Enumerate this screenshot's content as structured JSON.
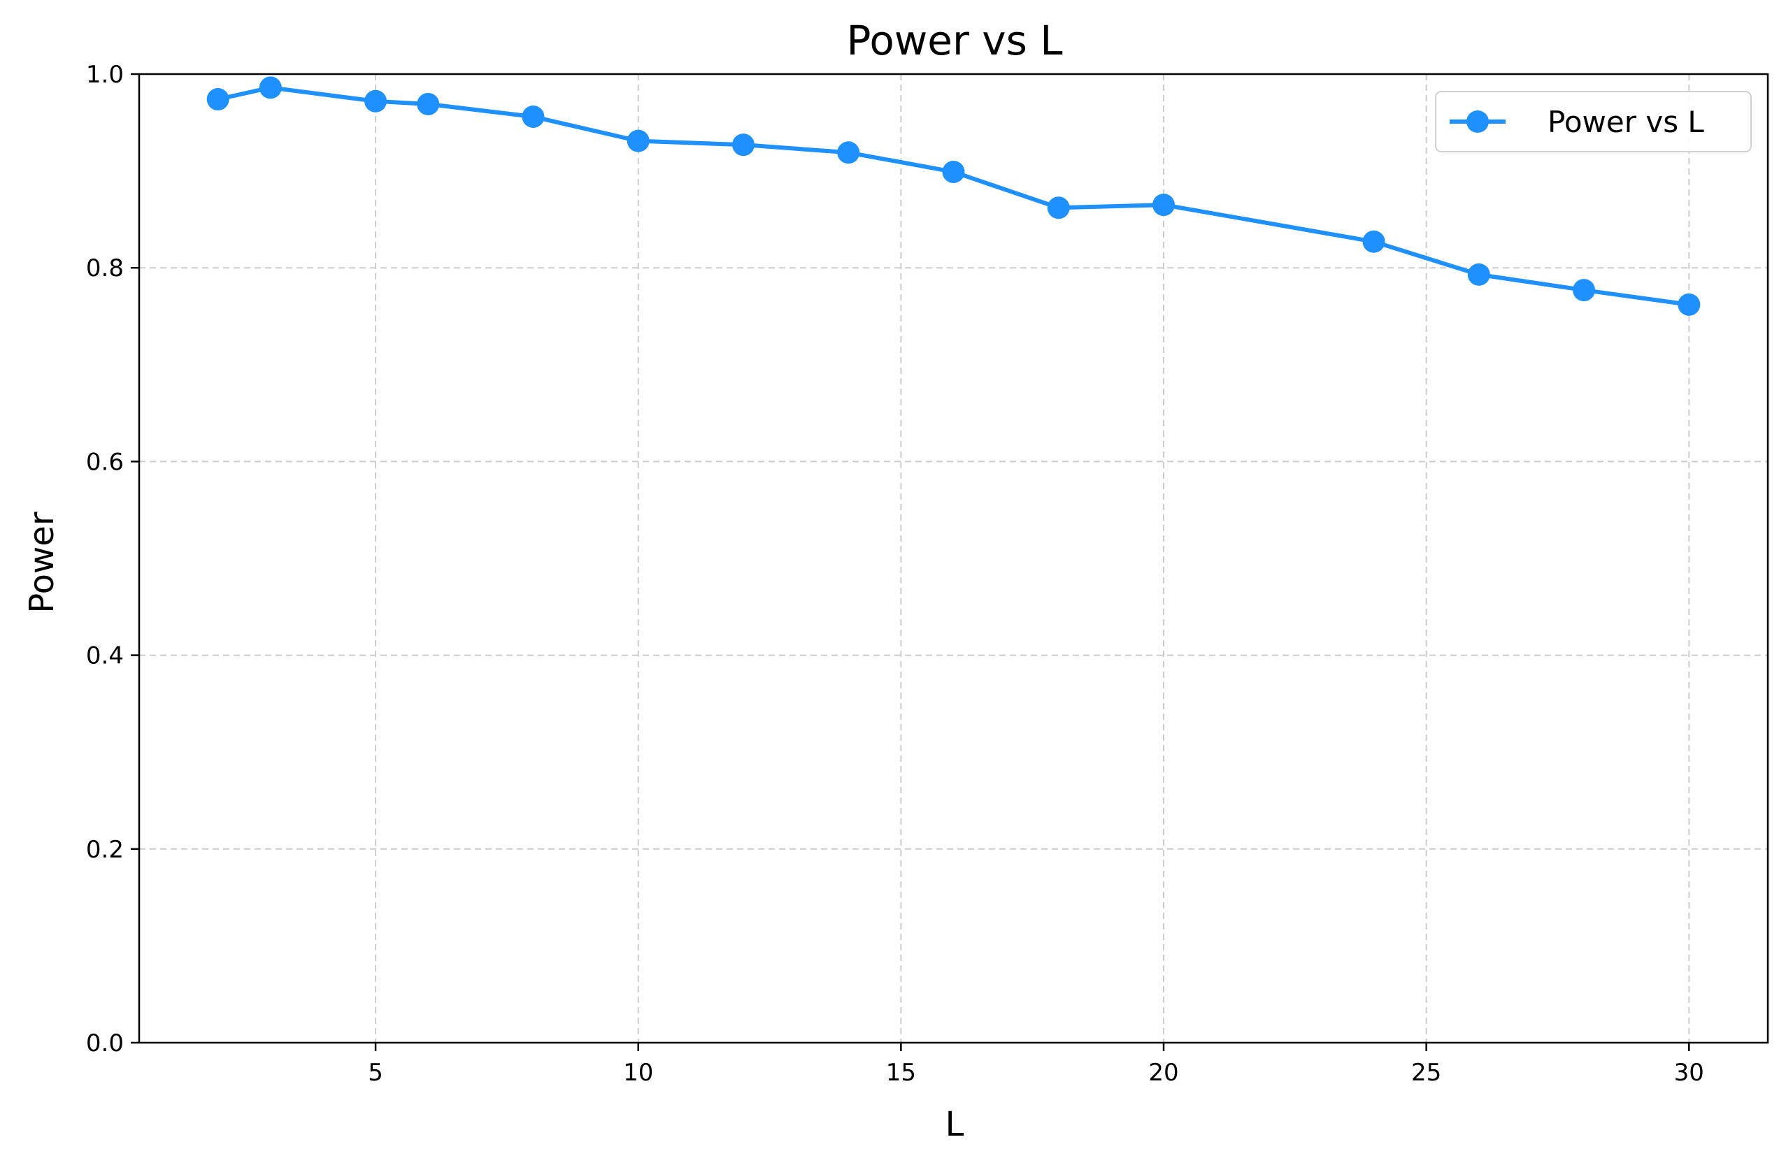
{
  "chart_data": {
    "type": "line",
    "title": "Power vs L",
    "xlabel": "L",
    "ylabel": "Power",
    "xlim": [
      0.5,
      31.5
    ],
    "ylim": [
      0.0,
      1.0
    ],
    "x_ticks": [
      5,
      10,
      15,
      20,
      25,
      30
    ],
    "x_tick_labels": [
      "5",
      "10",
      "15",
      "20",
      "25",
      "30"
    ],
    "y_ticks": [
      0.0,
      0.2,
      0.4,
      0.6,
      0.8,
      1.0
    ],
    "y_tick_labels": [
      "0.0",
      "0.2",
      "0.4",
      "0.6",
      "0.8",
      "1.0"
    ],
    "grid": true,
    "legend_position": "top-right",
    "series": [
      {
        "name": "Power vs L",
        "color": "#1e90ff",
        "marker": "circle",
        "x": [
          2,
          3,
          5,
          6,
          8,
          10,
          12,
          14,
          16,
          18,
          20,
          24,
          26,
          28,
          30
        ],
        "y": [
          0.974,
          0.986,
          0.972,
          0.969,
          0.956,
          0.931,
          0.927,
          0.919,
          0.899,
          0.862,
          0.865,
          0.827,
          0.793,
          0.777,
          0.762
        ]
      }
    ]
  }
}
